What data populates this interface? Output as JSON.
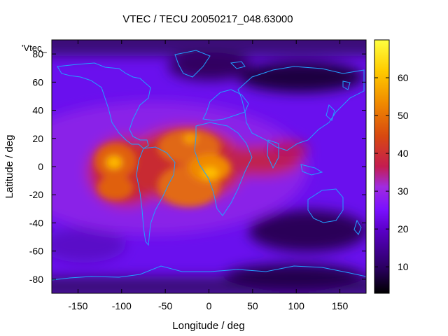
{
  "chart_data": {
    "type": "heatmap",
    "title": "VTEC / TECU 20050217_048.63000",
    "xlabel": "Longitude / deg",
    "ylabel": "Latitude / deg",
    "key_label": "'Vtec_",
    "xlim": [
      -180,
      180
    ],
    "ylim": [
      -90,
      90
    ],
    "x_ticks": [
      -150,
      -100,
      -50,
      0,
      50,
      100,
      150
    ],
    "y_ticks": [
      -80,
      -60,
      -40,
      -20,
      0,
      20,
      40,
      60,
      80
    ],
    "colorbar": {
      "range": [
        3,
        70
      ],
      "ticks": [
        10,
        20,
        30,
        40,
        50,
        60
      ],
      "palette": [
        "#000000",
        "#3a0080",
        "#6a00e0",
        "#7a10ff",
        "#a02ce0",
        "#c8203c",
        "#d84810",
        "#f08a00",
        "#ffd000",
        "#ffff40"
      ]
    },
    "grid": false,
    "features": [
      {
        "lon": -110,
        "lat": 2,
        "value": 60
      },
      {
        "lon": -100,
        "lat": -18,
        "value": 55
      },
      {
        "lon": -10,
        "lat": 20,
        "value": 50
      },
      {
        "lon": 0,
        "lat": -5,
        "value": 62
      },
      {
        "lon": -40,
        "lat": -5,
        "value": 55
      }
    ]
  }
}
